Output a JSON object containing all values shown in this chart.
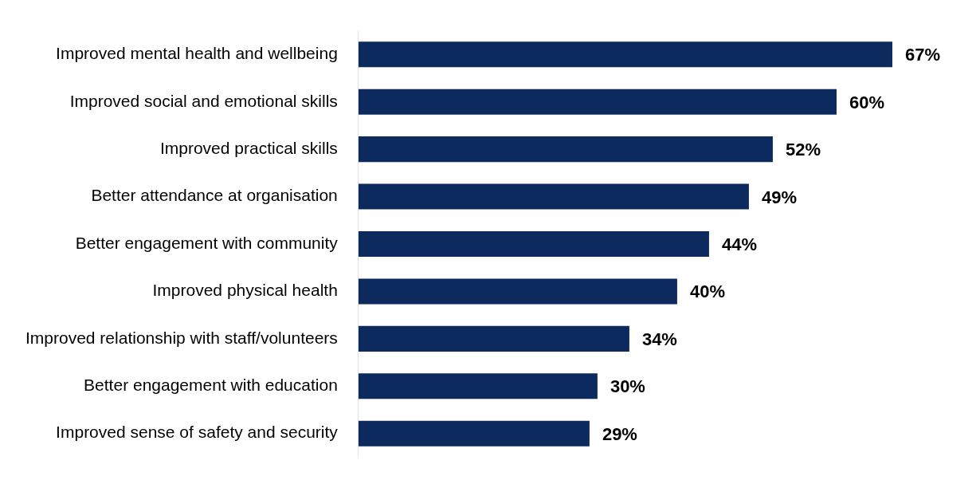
{
  "chart_data": {
    "type": "bar",
    "orientation": "horizontal",
    "color": "#0d2a5e",
    "categories": [
      "Improved mental health and wellbeing",
      "Improved social and emotional skills",
      "Improved practical skills",
      "Better attendance at organisation",
      "Better engagement with community",
      "Improved physical health",
      "Improved relationship with staff/volunteers",
      "Better engagement with education",
      "Improved sense of safety and security"
    ],
    "values": [
      67,
      60,
      52,
      49,
      44,
      40,
      34,
      30,
      29
    ],
    "value_labels": [
      "67%",
      "60%",
      "52%",
      "49%",
      "44%",
      "40%",
      "34%",
      "30%",
      "29%"
    ]
  }
}
